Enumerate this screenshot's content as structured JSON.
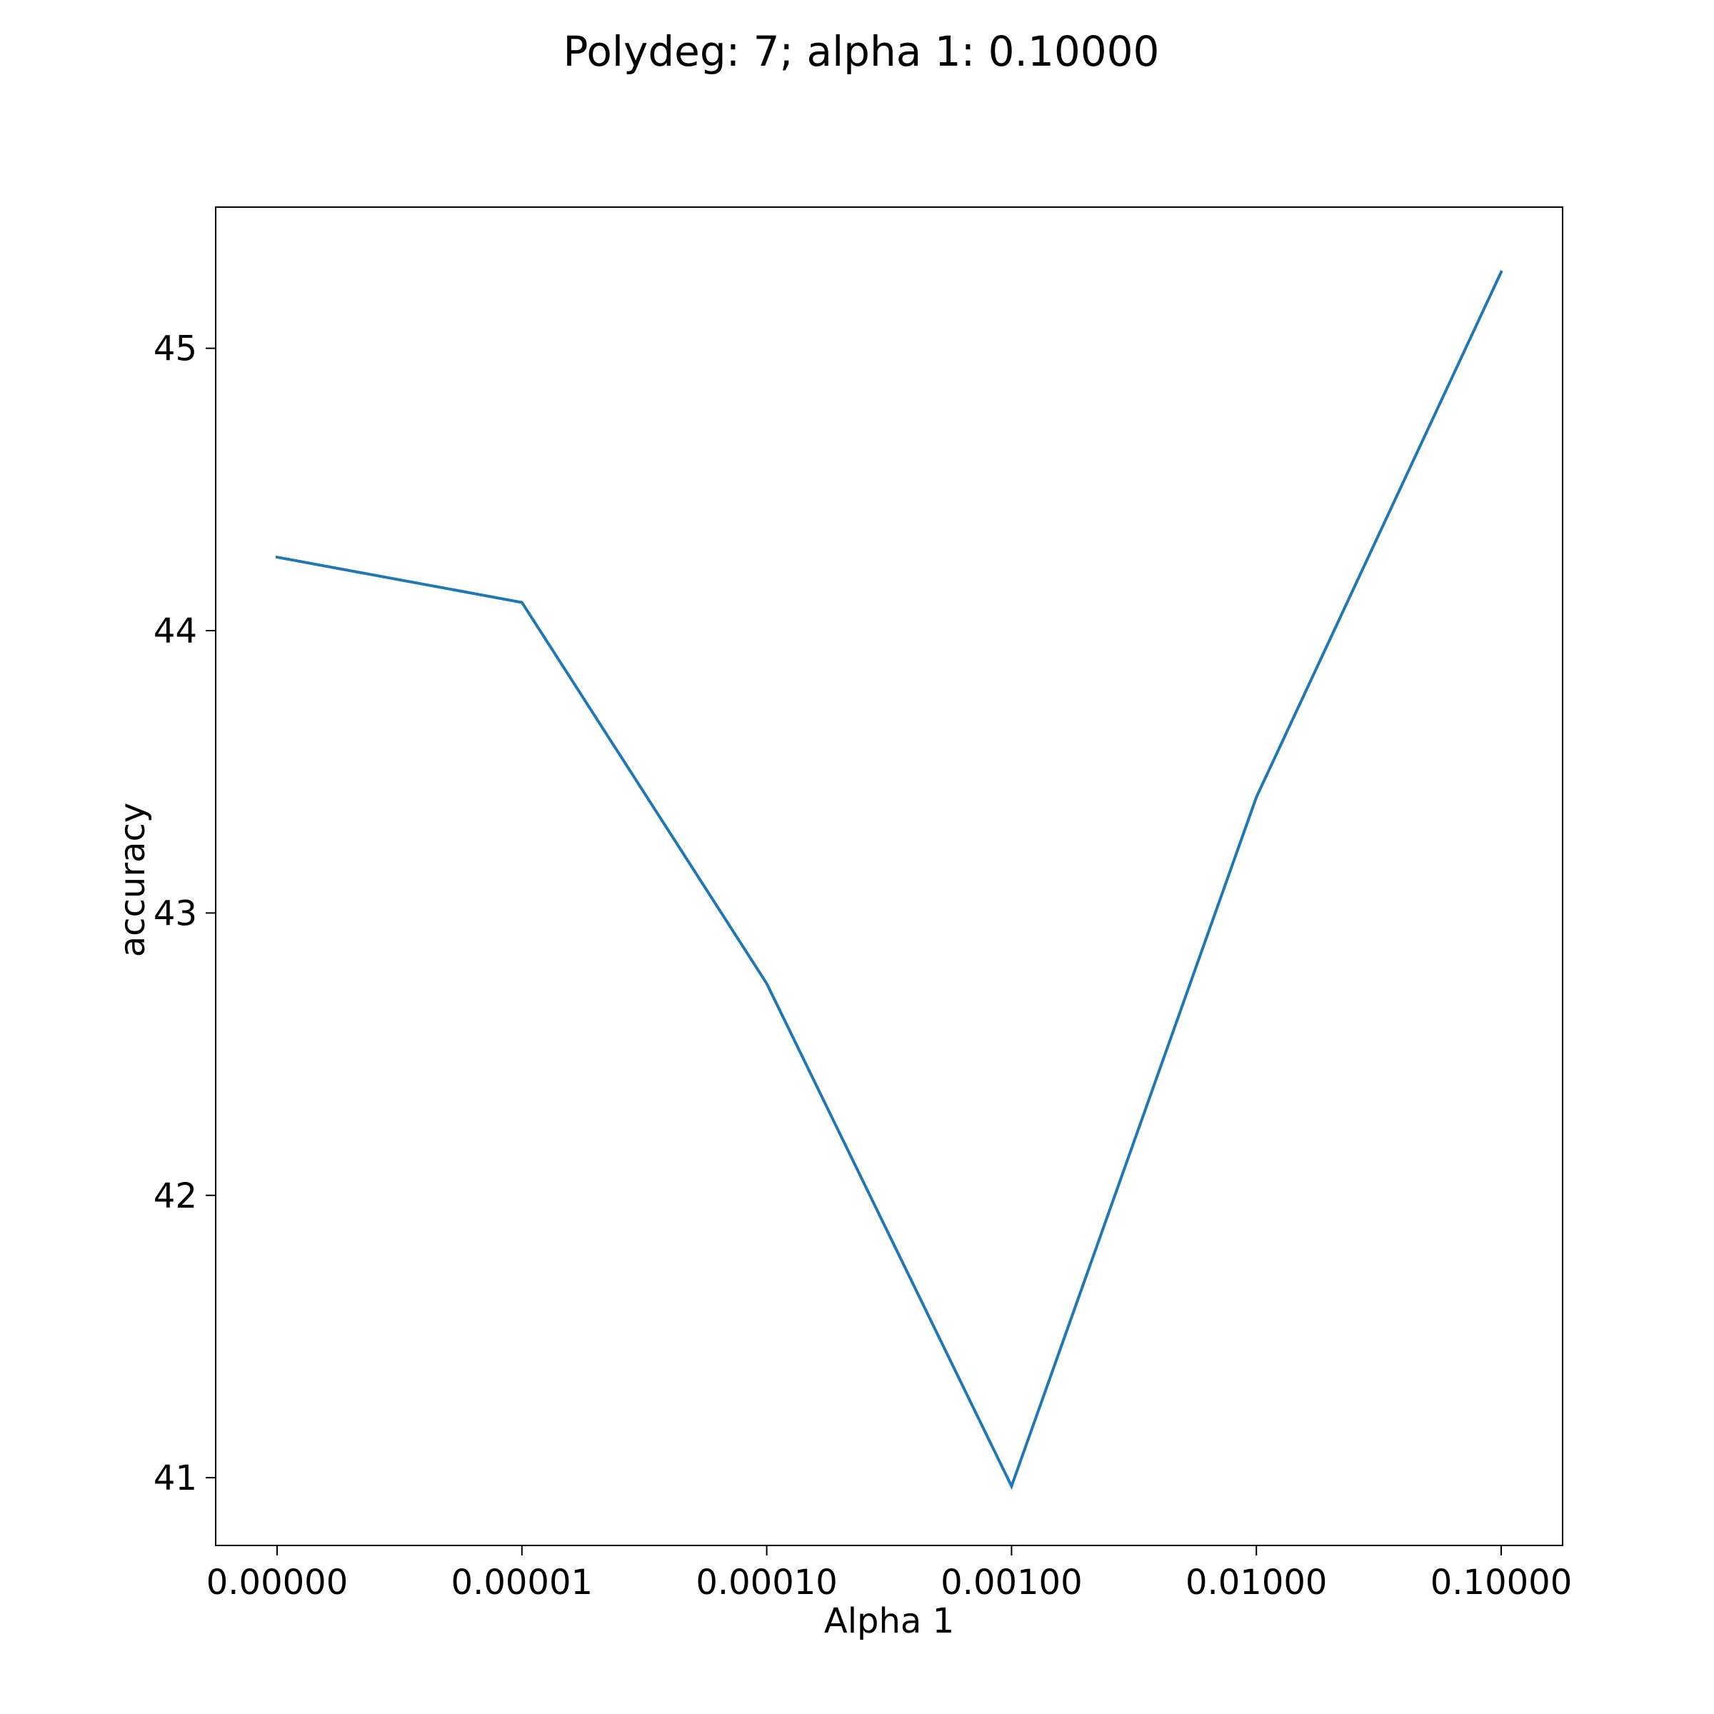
{
  "chart_data": {
    "type": "line",
    "title": "Polydeg: 7; alpha 1: 0.10000",
    "xlabel": "Alpha 1",
    "ylabel": "accuracy",
    "x_scale": "categorical",
    "categories": [
      "0.00000",
      "0.00001",
      "0.00010",
      "0.00100",
      "0.01000",
      "0.10000"
    ],
    "series": [
      {
        "values": [
          44.26,
          44.1,
          42.75,
          40.97,
          43.41,
          45.27
        ],
        "color": "#1f77b4"
      }
    ],
    "y_ticks": [
      "41",
      "42",
      "43",
      "44",
      "45"
    ],
    "y_tick_values": [
      41,
      42,
      43,
      44,
      45
    ],
    "ylim": [
      40.76,
      45.5
    ],
    "grid": false,
    "legend": "none"
  }
}
